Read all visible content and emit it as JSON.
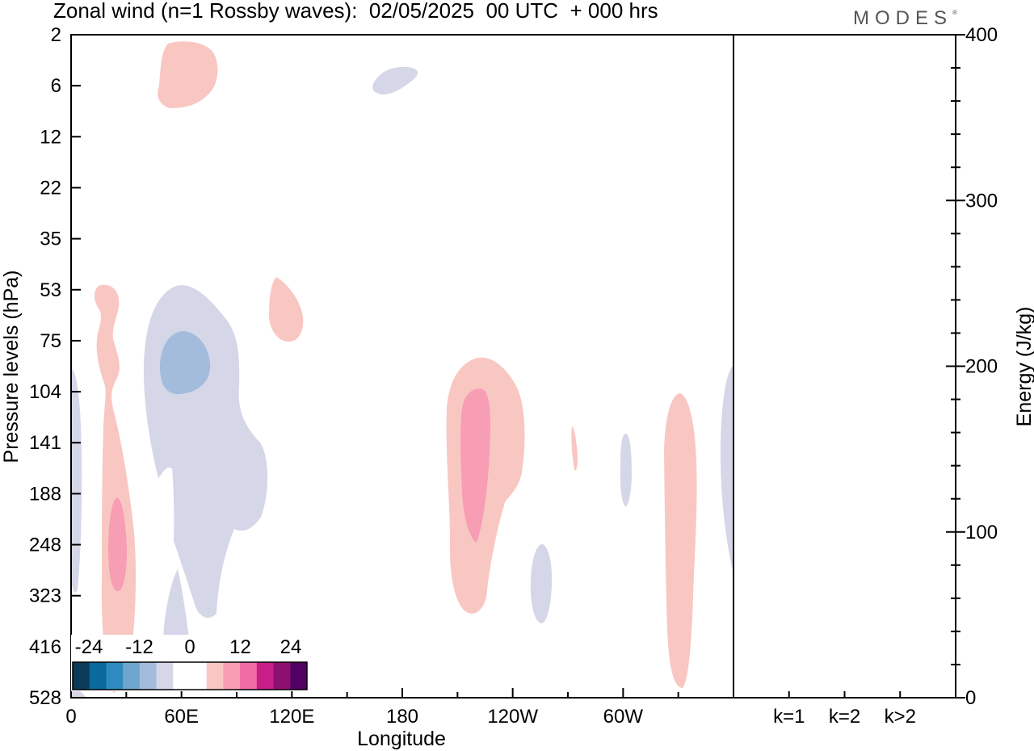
{
  "header": {
    "title": "Zonal wind (n=1 Rossby waves):  02/05/2025  00 UTC  + 000 hrs",
    "brand": "MODES"
  },
  "chart_data": {
    "type": "heatmap",
    "title": "Zonal wind (n=1 Rossby waves):  02/05/2025  00 UTC  + 000 hrs",
    "xlabel": "Longitude",
    "ylabel": "Pressure levels (hPa)",
    "y2label": "Energy (J/kg)",
    "x_ticks": [
      "0",
      "60E",
      "120E",
      "180",
      "120W",
      "60W"
    ],
    "y_ticks": [
      "2",
      "6",
      "12",
      "22",
      "35",
      "53",
      "75",
      "104",
      "141",
      "188",
      "248",
      "323",
      "416",
      "528"
    ],
    "y2_ticks": [
      "0",
      "100",
      "200",
      "300",
      "400"
    ],
    "y2lim": [
      0,
      400
    ],
    "energy_categories": [
      "k=1",
      "k=2",
      "k>2"
    ],
    "energy_values": [
      0,
      0,
      0
    ],
    "colorbar": {
      "labels": [
        "-24",
        "-12",
        "0",
        "12",
        "24"
      ],
      "colors": [
        "#0c3b58",
        "#0b6a9c",
        "#2f8ac1",
        "#6ea6cd",
        "#a4bcdc",
        "#d5d7e8",
        "#ffffff",
        "#ffffff",
        "#f9c7c2",
        "#f79db4",
        "#f06aa4",
        "#c71e87",
        "#8e0f72",
        "#520062"
      ]
    },
    "contour_colors": {
      "neg_light": "#d5d7e8",
      "neg_mid": "#a4bcdc",
      "pos_light": "#f9c7c2",
      "pos_mid": "#f79db4"
    },
    "regions": [
      {
        "sign": "positive",
        "level": "light",
        "lon": "20E-30E",
        "pressure": "53-528"
      },
      {
        "sign": "positive",
        "level": "mid",
        "lon": "25E",
        "pressure": "188-323"
      },
      {
        "sign": "positive",
        "level": "light",
        "lon": "50E-80E",
        "pressure": "2-6"
      },
      {
        "sign": "negative",
        "level": "light",
        "lon": "40E-110E",
        "pressure": "53-528"
      },
      {
        "sign": "negative",
        "level": "mid",
        "lon": "50E-75E",
        "pressure": "75-104"
      },
      {
        "sign": "positive",
        "level": "light",
        "lon": "110E-125E",
        "pressure": "53-75"
      },
      {
        "sign": "negative",
        "level": "light",
        "lon": "165E-190E",
        "pressure": "6"
      },
      {
        "sign": "positive",
        "level": "light",
        "lon": "155W-115W",
        "pressure": "104-323"
      },
      {
        "sign": "positive",
        "level": "mid",
        "lon": "145W-130W",
        "pressure": "104-248"
      },
      {
        "sign": "negative",
        "level": "light",
        "lon": "100W-95W",
        "pressure": "248-323"
      },
      {
        "sign": "positive",
        "level": "light",
        "lon": "75W",
        "pressure": "141"
      },
      {
        "sign": "negative",
        "level": "light",
        "lon": "60W",
        "pressure": "141-188"
      },
      {
        "sign": "positive",
        "level": "light",
        "lon": "35W-20W",
        "pressure": "104-416"
      },
      {
        "sign": "negative",
        "level": "light",
        "lon": "5W-0",
        "pressure": "104-248"
      },
      {
        "sign": "negative",
        "level": "light",
        "lon": "0-5E",
        "pressure": "104-323"
      }
    ]
  }
}
